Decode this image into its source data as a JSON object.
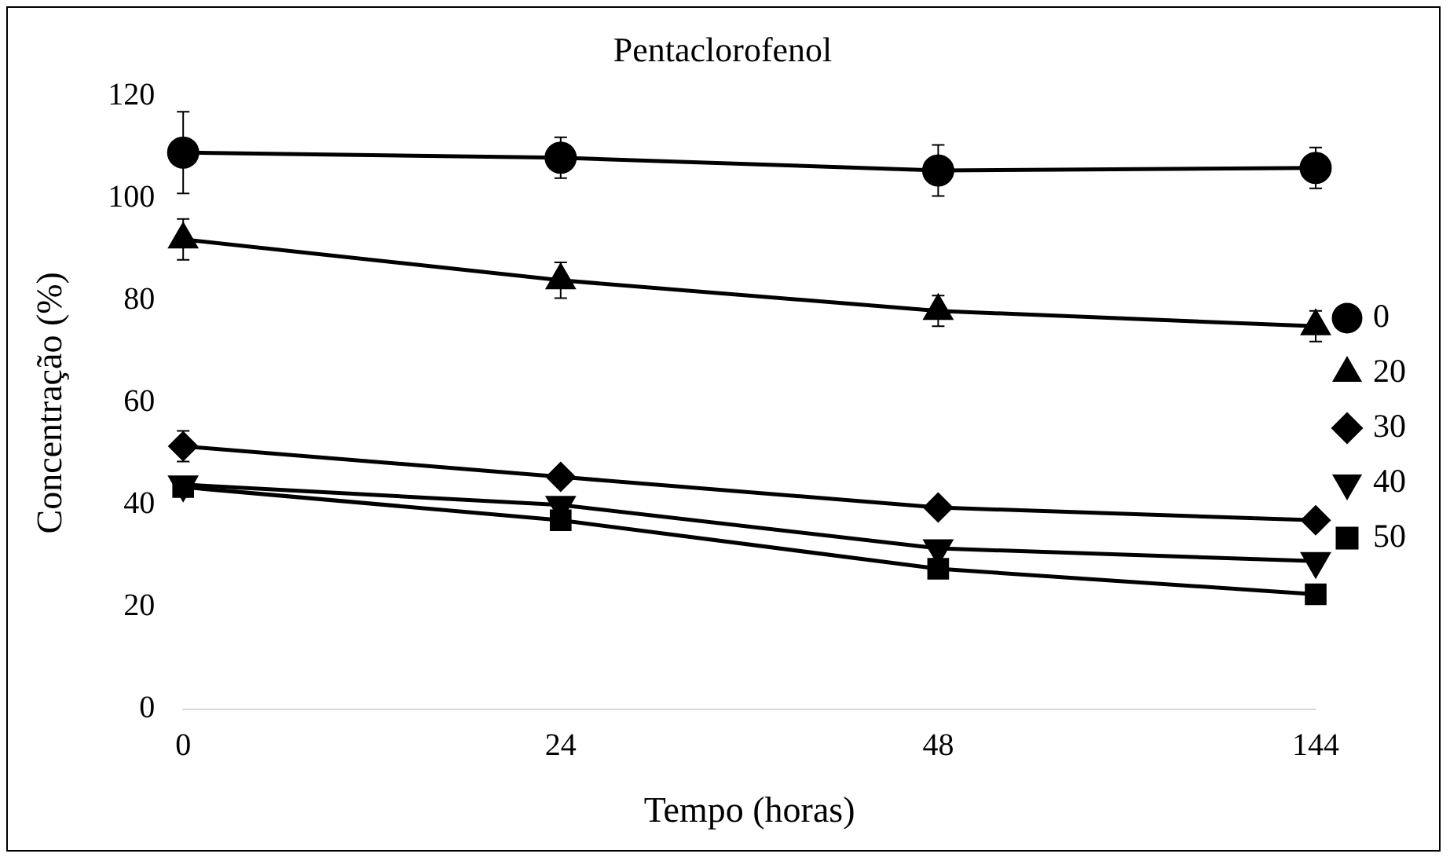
{
  "chart_data": {
    "type": "line",
    "title": "Pentaclorofenol",
    "xlabel": "Tempo (horas)",
    "ylabel": "Concentração (%)",
    "categories": [
      "0",
      "24",
      "48",
      "144"
    ],
    "ylim": [
      0,
      120
    ],
    "yticks": [
      0,
      20,
      40,
      60,
      80,
      100,
      120
    ],
    "grid": false,
    "legend": "right",
    "line_style": "solid",
    "series": [
      {
        "name": "0",
        "color": "#000000",
        "marker": "circle",
        "values": [
          109,
          108,
          105.5,
          106
        ],
        "errors": [
          8,
          4,
          5,
          4
        ]
      },
      {
        "name": "20",
        "color": "#000000",
        "marker": "triangle",
        "values": [
          92,
          84,
          78,
          75
        ],
        "errors": [
          4,
          3.5,
          3,
          3
        ]
      },
      {
        "name": "30",
        "color": "#000000",
        "marker": "diamond",
        "values": [
          51.5,
          45.5,
          39.5,
          37
        ],
        "errors": [
          3,
          null,
          null,
          null
        ]
      },
      {
        "name": "40",
        "color": "#000000",
        "marker": "triangle-down",
        "values": [
          44,
          40,
          31.5,
          29
        ]
      },
      {
        "name": "50",
        "color": "#000000",
        "marker": "square",
        "values": [
          43.5,
          37,
          27.5,
          22.5
        ]
      }
    ]
  }
}
